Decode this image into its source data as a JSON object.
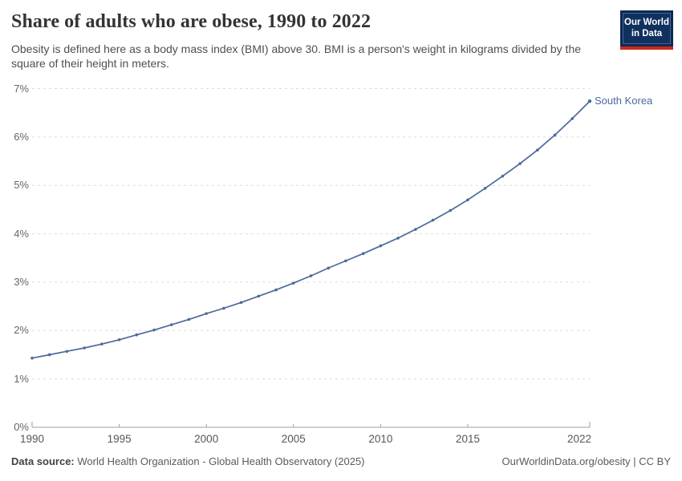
{
  "header": {
    "title": "Share of adults who are obese, 1990 to 2022",
    "subtitle": "Obesity is defined here as a body mass index (BMI) above 30. BMI is a person's weight in kilograms divided by the square of their height in meters.",
    "logo_line1": "Our World",
    "logo_line2": "in Data"
  },
  "chart_data": {
    "type": "line",
    "title": "Share of adults who are obese, 1990 to 2022",
    "xlabel": "",
    "ylabel": "",
    "unit": "%",
    "x": [
      1990,
      1991,
      1992,
      1993,
      1994,
      1995,
      1996,
      1997,
      1998,
      1999,
      2000,
      2001,
      2002,
      2003,
      2004,
      2005,
      2006,
      2007,
      2008,
      2009,
      2010,
      2011,
      2012,
      2013,
      2014,
      2015,
      2016,
      2017,
      2018,
      2019,
      2020,
      2021,
      2022
    ],
    "series": [
      {
        "name": "South Korea",
        "color": "#4C6A9C",
        "values": [
          1.43,
          1.5,
          1.57,
          1.64,
          1.72,
          1.81,
          1.91,
          2.01,
          2.12,
          2.23,
          2.35,
          2.46,
          2.58,
          2.71,
          2.84,
          2.98,
          3.13,
          3.29,
          3.44,
          3.59,
          3.75,
          3.91,
          4.09,
          4.28,
          4.48,
          4.7,
          4.94,
          5.19,
          5.45,
          5.73,
          6.04,
          6.38,
          6.74
        ]
      }
    ],
    "xlim": [
      1990,
      2022
    ],
    "ylim": [
      0,
      7
    ],
    "yticks": [
      {
        "value": 0,
        "label": "0%"
      },
      {
        "value": 1,
        "label": "1%"
      },
      {
        "value": 2,
        "label": "2%"
      },
      {
        "value": 3,
        "label": "3%"
      },
      {
        "value": 4,
        "label": "4%"
      },
      {
        "value": 5,
        "label": "5%"
      },
      {
        "value": 6,
        "label": "6%"
      },
      {
        "value": 7,
        "label": "7%"
      }
    ],
    "xticks": [
      1990,
      1995,
      2000,
      2005,
      2010,
      2015,
      2022
    ],
    "grid": "horizontal-dashed",
    "legend_position": "end-of-line-label",
    "colors": {
      "line": "#4C6A9C",
      "grid": "#dcdcdc",
      "axis": "#9e9e9e",
      "tick_text": "#666666"
    }
  },
  "footer": {
    "datasource_label": "Data source:",
    "datasource_text": " World Health Organization - Global Health Observatory (2025)",
    "credit": "OurWorldinData.org/obesity | CC BY"
  }
}
